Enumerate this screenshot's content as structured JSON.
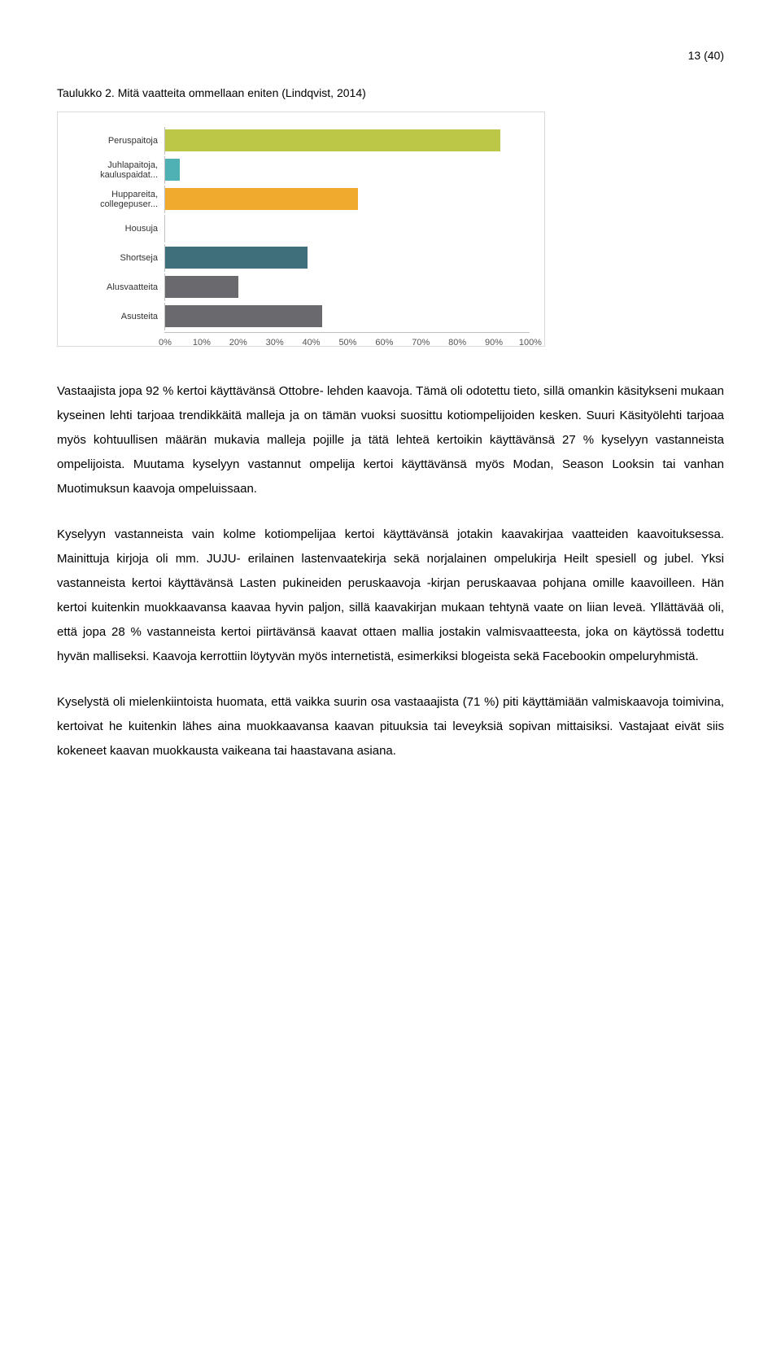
{
  "page_number": "13 (40)",
  "caption": "Taulukko 2. Mitä vaatteita ommellaan eniten (Lindqvist, 2014)",
  "chart": {
    "type": "bar-horizontal",
    "xlim": [
      0,
      100
    ],
    "xtick_step": 10,
    "xtick_labels": [
      "0%",
      "10%",
      "20%",
      "30%",
      "40%",
      "50%",
      "60%",
      "70%",
      "80%",
      "90%",
      "100%"
    ],
    "track_color": "#ffffff",
    "border_color": "#d9d9d9",
    "axis_color": "#c0c0c0",
    "label_fontsize": 11,
    "categories": [
      {
        "label": "Peruspaitoja",
        "value": 92,
        "color": "#bcc747"
      },
      {
        "label": "Juhlapaitoja, kauluspaidat...",
        "value": 4,
        "color": "#4fb1b3"
      },
      {
        "label": "Huppareita, collegepuser...",
        "value": 53,
        "color": "#f0ab2e"
      },
      {
        "label": "Housuja",
        "value": 0,
        "color": "#6a696e"
      },
      {
        "label": "Shortseja",
        "value": 39,
        "color": "#3f6f7a"
      },
      {
        "label": "Alusvaatteita",
        "value": 20,
        "color": "#6a696e"
      },
      {
        "label": "Asusteita",
        "value": 43,
        "color": "#6a696e"
      }
    ]
  },
  "paragraphs": {
    "p1": "Vastaajista jopa 92 % kertoi käyttävänsä Ottobre- lehden kaavoja. Tämä oli odotettu tieto, sillä omankin käsitykseni mukaan kyseinen lehti tarjoaa trendikkäitä malleja ja on tämän vuoksi suosittu kotiompelijoiden kesken. Suuri Käsityölehti tarjoaa myös kohtuullisen määrän mukavia malleja pojille ja tätä lehteä kertoikin käyttävänsä 27 % kyselyyn vastanneista ompelijoista. Muutama kyselyyn vastannut ompelija kertoi käyttävänsä myös Modan, Season Looksin tai vanhan Muotimuksun kaavoja ompeluissaan.",
    "p2": "Kyselyyn vastanneista vain kolme kotiompelijaa kertoi käyttävänsä jotakin kaavakirjaa vaatteiden kaavoituksessa. Mainittuja kirjoja oli mm. JUJU- erilainen lastenvaatekirja sekä norjalainen ompelukirja Heilt spesiell og jubel. Yksi vastanneista kertoi käyttävänsä Lasten pukineiden peruskaavoja -kirjan peruskaavaa pohjana omille kaavoilleen. Hän kertoi kuitenkin muokkaavansa kaavaa hyvin paljon, sillä kaavakirjan mukaan tehtynä vaate on liian leveä. Yllättävää oli, että jopa 28 % vastanneista kertoi piirtävänsä kaavat ottaen mallia jostakin valmisvaatteesta, joka on käytössä todettu hyvän malliseksi. Kaavoja kerrottiin löytyvän myös internetistä, esimerkiksi blogeista sekä Facebookin ompeluryhmistä.",
    "p3": "Kyselystä oli mielenkiintoista huomata, että vaikka suurin osa vastaaajista (71 %) piti käyttämiään valmiskaavoja toimivina, kertoivat he kuitenkin lähes aina muokkaavansa kaavan pituuksia tai leveyksiä sopivan mittaisiksi. Vastajaat eivät siis kokeneet kaavan muokkausta vaikeana tai haastavana asiana."
  }
}
